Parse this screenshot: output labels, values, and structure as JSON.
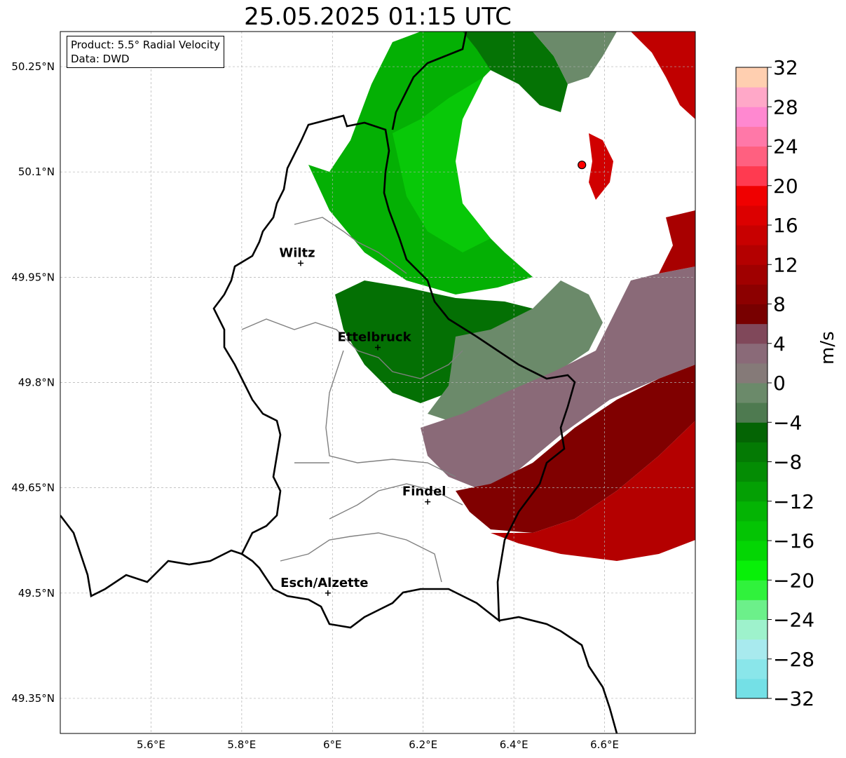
{
  "title": "25.05.2025 01:15 UTC",
  "info": {
    "product": "Product: 5.5° Radial Velocity",
    "source": "Data: DWD"
  },
  "axes": {
    "lat_labels": [
      "50.25°N",
      "50.1°N",
      "49.95°N",
      "49.8°N",
      "49.65°N",
      "49.5°N",
      "49.35°N"
    ],
    "lat_values": [
      50.25,
      50.1,
      49.95,
      49.8,
      49.65,
      49.5,
      49.35
    ],
    "lon_labels": [
      "5.6°E",
      "5.8°E",
      "6°E",
      "6.2°E",
      "6.4°E",
      "6.6°E"
    ],
    "lon_values": [
      5.6,
      5.8,
      6.0,
      6.2,
      6.4,
      6.6
    ],
    "lon_range": [
      5.4,
      6.8
    ],
    "lat_range": [
      49.3,
      50.3
    ],
    "grid": true
  },
  "cities": [
    {
      "name": "Wiltz",
      "lon": 5.93,
      "lat": 49.97
    },
    {
      "name": "Ettelbruck",
      "lon": 6.1,
      "lat": 49.85
    },
    {
      "name": "Findel",
      "lon": 6.21,
      "lat": 49.63
    },
    {
      "name": "Esch/Alzette",
      "lon": 5.99,
      "lat": 49.5
    }
  ],
  "radar_site": {
    "lon": 6.55,
    "lat": 50.11,
    "color": "#ff0000"
  },
  "colorbar": {
    "title": "m/s",
    "min": -32,
    "max": 32,
    "ticks": [
      "−32",
      "−28",
      "−24",
      "−20",
      "−16",
      "−12",
      "−8",
      "−4",
      "0",
      "4",
      "8",
      "12",
      "16",
      "20",
      "24",
      "28",
      "32"
    ],
    "tick_values": [
      -32,
      -28,
      -24,
      -20,
      -16,
      -12,
      -8,
      -4,
      0,
      4,
      8,
      12,
      16,
      20,
      24,
      28,
      32
    ],
    "colors": [
      "#74e0e6",
      "#8ae6ea",
      "#a8eaee",
      "#9ef2cc",
      "#6cf08a",
      "#30f23c",
      "#08f008",
      "#04d604",
      "#04c404",
      "#04b404",
      "#04a004",
      "#048c04",
      "#047a04",
      "#046404",
      "#4e7a50",
      "#6b8a6a",
      "#857a78",
      "#8a6a78",
      "#80485a",
      "#780000",
      "#8c0000",
      "#a00000",
      "#b40000",
      "#c80000",
      "#dc0000",
      "#f00000",
      "#ff3a50",
      "#ff6080",
      "#ff78a8",
      "#ff88d0",
      "#ffa8c8",
      "#ffcfb0"
    ]
  }
}
